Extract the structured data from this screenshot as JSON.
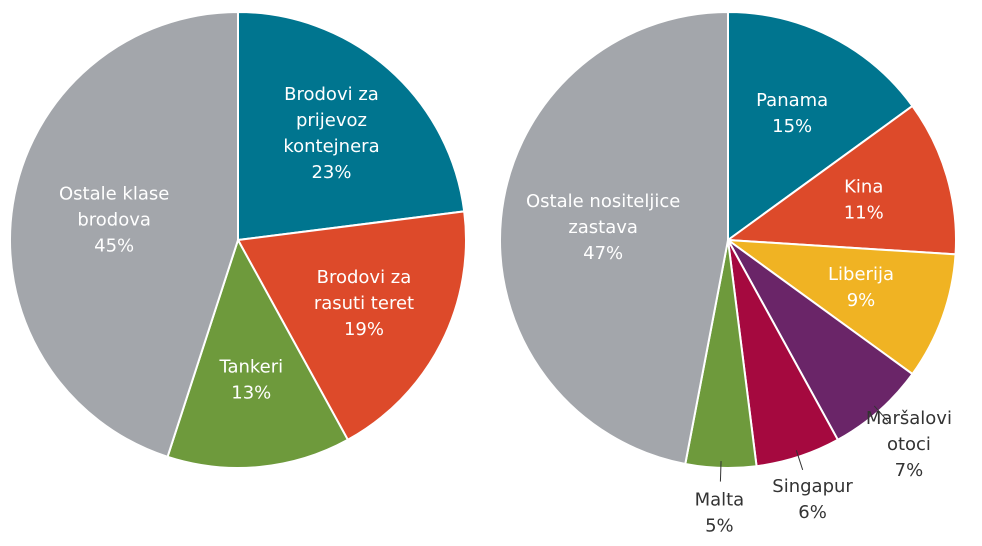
{
  "chart_data": [
    {
      "type": "pie",
      "categories": [
        "Brodovi za\nprijevoz\nkontejnera",
        "Brodovi za\nrasuti teret",
        "Tankeri",
        "Ostale klase\nbrodova"
      ],
      "values": [
        23,
        19,
        13,
        45
      ],
      "value_labels": [
        "23%",
        "19%",
        "13%",
        "45%"
      ],
      "colors": [
        "#00758f",
        "#dd4a2a",
        "#6e9a3c",
        "#a3a6ab"
      ]
    },
    {
      "type": "pie",
      "categories": [
        "Panama",
        "Kina",
        "Liberija",
        "Maršalovi\notoci",
        "Singapur",
        "Malta",
        "Ostale nositeljice\nzastava"
      ],
      "values": [
        15,
        11,
        9,
        7,
        6,
        5,
        47
      ],
      "value_labels": [
        "15%",
        "11%",
        "9%",
        "7%",
        "6%",
        "5%",
        "47%"
      ],
      "colors": [
        "#00758f",
        "#dd4a2a",
        "#f0b323",
        "#6a2568",
        "#a5093f",
        "#6e9a3c",
        "#a3a6ab"
      ]
    }
  ]
}
